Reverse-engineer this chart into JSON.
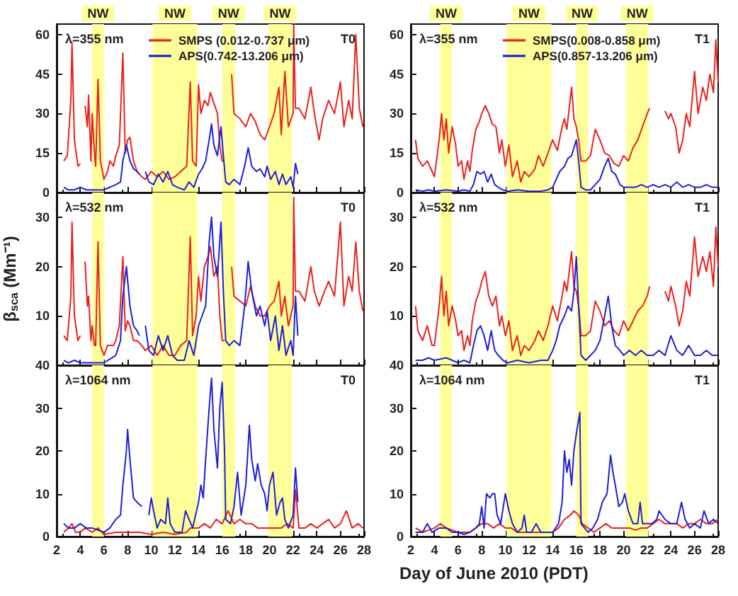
{
  "chart_data": [
    {
      "type": "line",
      "xlim": [
        2,
        28
      ],
      "xticks": [
        2,
        4,
        6,
        8,
        10,
        12,
        14,
        16,
        18,
        20,
        22,
        24,
        26,
        28
      ],
      "ylim": [
        0,
        64
      ],
      "yticks": [
        0,
        15,
        30,
        45,
        60
      ],
      "tick_labels": "y",
      "marker": "none",
      "legend": "top",
      "annotations": [
        "λ=355 nm",
        "T0"
      ],
      "bands": [
        {
          "axis": "x",
          "from": 5.0,
          "to": 6.0,
          "label": "NW",
          "color": "#ffff99"
        },
        {
          "axis": "x",
          "from": 10.1,
          "to": 13.9,
          "label": "NW",
          "color": "#ffff99"
        },
        {
          "axis": "x",
          "from": 16.0,
          "to": 17.1,
          "label": "NW",
          "color": "#ffff99"
        },
        {
          "axis": "x",
          "from": 19.9,
          "to": 21.9,
          "label": "NW",
          "color": "#ffff99"
        }
      ],
      "series": [
        {
          "name": "SMPS (0.012-0.737 μm)",
          "color": "#e8231e",
          "x": [
            2.6,
            2.9,
            3.2,
            3.3,
            3.5,
            3.8,
            4.0,
            4.2,
            4.4,
            4.6,
            4.7,
            4.9,
            5.0,
            5.2,
            5.3,
            5.5,
            5.7,
            6.0,
            6.3,
            6.5,
            6.8,
            7.0,
            7.3,
            7.6,
            7.8,
            8.0,
            8.2,
            8.5,
            8.8,
            9.2,
            9.5,
            10.0,
            10.5,
            11.0,
            11.5,
            12.0,
            12.5,
            13.0,
            13.3,
            13.5,
            13.8,
            14.0,
            14.2,
            14.5,
            14.8,
            15.0,
            15.3,
            15.6,
            15.8,
            16.0,
            16.2,
            16.5,
            16.8,
            17.0,
            17.5,
            18.0,
            18.4,
            18.8,
            19.2,
            19.6,
            20.0,
            20.4,
            20.8,
            21.0,
            21.3,
            21.6,
            22.0,
            22.05,
            22.2,
            22.5,
            23.0,
            23.5,
            23.8,
            24.2,
            24.5,
            25.0,
            25.5,
            26.0,
            26.3,
            26.7,
            27.0,
            27.3,
            27.6,
            27.9
          ],
          "values": [
            12,
            14,
            35,
            57,
            20,
            10,
            11,
            null,
            33,
            25,
            37,
            12,
            30,
            15,
            10,
            43,
            12,
            5,
            8,
            12,
            10,
            14,
            18,
            53,
            15,
            20,
            21,
            12,
            8,
            6,
            5,
            8,
            6,
            8,
            5,
            6,
            8,
            10,
            42,
            12,
            10,
            41,
            30,
            35,
            33,
            38,
            34,
            30,
            18,
            12,
            12,
            null,
            45,
            30,
            28,
            25,
            30,
            27,
            22,
            20,
            25,
            30,
            40,
            22,
            46,
            25,
            30,
            64,
            32,
            32,
            28,
            40,
            30,
            20,
            28,
            35,
            30,
            42,
            25,
            35,
            28,
            60,
            32,
            25
          ]
        },
        {
          "name": "APS(0.742-13.206 μm)",
          "color": "#1f1fd6",
          "x": [
            2.6,
            3.0,
            3.5,
            4.0,
            4.5,
            5.0,
            6.0,
            7.0,
            7.4,
            7.6,
            7.9,
            8.2,
            8.5,
            8.8,
            9.0,
            9.2,
            9.5,
            9.8,
            10.2,
            10.6,
            11.0,
            11.4,
            11.8,
            12.2,
            12.8,
            13.2,
            13.6,
            14.0,
            14.3,
            14.6,
            14.9,
            15.1,
            15.3,
            15.6,
            15.9,
            16.1,
            16.3,
            16.6,
            17.0,
            17.5,
            17.9,
            18.2,
            18.5,
            18.9,
            19.2,
            19.6,
            19.8,
            20.1,
            20.5,
            20.8,
            21.1,
            21.4,
            21.8,
            22.0,
            22.2,
            22.4
          ],
          "values": [
            2,
            1,
            1,
            2,
            1,
            1,
            1,
            3,
            4,
            12,
            18,
            12,
            9,
            8,
            7,
            null,
            8,
            4,
            3,
            7,
            4,
            8,
            3,
            2,
            1,
            4,
            2,
            7,
            9,
            12,
            20,
            26,
            18,
            14,
            25,
            14,
            4,
            3,
            5,
            3,
            10,
            17,
            10,
            8,
            9,
            6,
            10,
            5,
            8,
            3,
            7,
            3,
            6,
            2,
            11,
            7
          ]
        }
      ]
    },
    {
      "type": "line",
      "xlim": [
        2,
        28
      ],
      "xticks": [
        2,
        4,
        6,
        8,
        10,
        12,
        14,
        16,
        18,
        20,
        22,
        24,
        26,
        28
      ],
      "ylim": [
        0,
        64
      ],
      "yticks": [
        0,
        15,
        30,
        45,
        60
      ],
      "tick_labels": "y",
      "marker": "none",
      "legend": "top",
      "annotations": [
        "λ=355 nm",
        "T1"
      ],
      "bands": [
        {
          "axis": "x",
          "from": 4.5,
          "to": 5.5,
          "label": "NW",
          "color": "#ffff99"
        },
        {
          "axis": "x",
          "from": 10.1,
          "to": 13.9,
          "label": "NW",
          "color": "#ffff99"
        },
        {
          "axis": "x",
          "from": 16.0,
          "to": 17.0,
          "label": "NW",
          "color": "#ffff99"
        },
        {
          "axis": "x",
          "from": 20.2,
          "to": 22.1,
          "label": "NW",
          "color": "#ffff99"
        }
      ],
      "series": [
        {
          "name": "SMPS(0.008-0.858 μm)",
          "color": "#e8231e",
          "x": [
            2.4,
            2.6,
            3.0,
            3.4,
            3.8,
            4.0,
            4.4,
            4.6,
            4.8,
            5.0,
            5.2,
            5.5,
            5.8,
            6.0,
            6.3,
            6.5,
            6.8,
            7.0,
            7.2,
            7.5,
            7.8,
            8.0,
            8.3,
            8.6,
            8.9,
            9.2,
            9.5,
            9.7,
            10.0,
            10.3,
            10.6,
            11.0,
            11.3,
            11.6,
            12.0,
            12.5,
            12.8,
            13.2,
            13.6,
            14.0,
            14.4,
            14.8,
            15.0,
            15.2,
            15.6,
            15.8,
            16.0,
            16.2,
            16.4,
            16.8,
            17.2,
            17.6,
            18.0,
            18.4,
            18.8,
            19.2,
            19.6,
            20.0,
            20.4,
            20.8,
            21.2,
            21.6,
            22.0,
            22.2,
            22.8,
            23.5,
            23.8,
            24.0,
            24.4,
            24.7,
            25.0,
            25.3,
            25.6,
            26.0,
            26.3,
            26.7,
            27.0,
            27.3,
            27.6,
            27.8,
            28.0
          ],
          "values": [
            20,
            13,
            10,
            12,
            8,
            6,
            20,
            30,
            20,
            28,
            15,
            25,
            18,
            10,
            12,
            5,
            12,
            8,
            16,
            24,
            27,
            30,
            33,
            30,
            26,
            25,
            15,
            20,
            10,
            18,
            6,
            12,
            4,
            8,
            6,
            9,
            14,
            10,
            15,
            20,
            16,
            25,
            28,
            24,
            40,
            28,
            25,
            20,
            12,
            12,
            14,
            24,
            20,
            15,
            14,
            11,
            10,
            14,
            12,
            17,
            20,
            25,
            30,
            32,
            null,
            31,
            28,
            30,
            25,
            15,
            20,
            30,
            25,
            46,
            30,
            40,
            35,
            45,
            38,
            58,
            42
          ]
        },
        {
          "name": "APS(0.857-13.206 μm)",
          "color": "#1f1fd6",
          "x": [
            2.4,
            3.0,
            3.5,
            4.0,
            5.0,
            6.0,
            6.5,
            7.0,
            7.3,
            7.6,
            7.9,
            8.2,
            8.5,
            8.8,
            9.1,
            9.4,
            9.8,
            10.2,
            11.0,
            12.0,
            13.0,
            13.6,
            14.0,
            14.3,
            14.6,
            15.0,
            15.3,
            15.6,
            15.8,
            16.0,
            16.2,
            16.4,
            16.8,
            17.2,
            17.6,
            18.0,
            18.4,
            18.7,
            19.0,
            19.3,
            19.7,
            20.0,
            20.5,
            21.0,
            21.5,
            22.0,
            22.5,
            23.0,
            23.5,
            24.0,
            24.5,
            25.0,
            25.5,
            26.0,
            26.5,
            27.0,
            27.5,
            28.0
          ],
          "values": [
            1,
            0.5,
            1,
            0.5,
            1,
            0.5,
            1,
            0.5,
            3,
            8,
            7,
            8,
            4,
            7,
            3,
            2,
            1,
            0.5,
            1,
            0.5,
            0.5,
            1,
            2,
            5,
            8,
            10,
            13,
            14,
            17,
            20,
            12,
            2,
            1,
            1,
            3,
            5,
            10,
            13,
            8,
            7,
            3,
            2,
            2,
            2,
            3,
            2,
            3,
            2,
            3,
            2,
            4,
            2,
            3,
            2,
            2,
            3,
            2,
            2
          ]
        }
      ]
    },
    {
      "type": "line",
      "xlim": [
        2,
        28
      ],
      "xticks": [
        2,
        4,
        6,
        8,
        10,
        12,
        14,
        16,
        18,
        20,
        22,
        24,
        26,
        28
      ],
      "ylim": [
        0,
        35
      ],
      "yticks": [
        {
          "value": 0,
          "label": null
        },
        10,
        20,
        30
      ],
      "tick_labels": "y",
      "marker": "none",
      "ylabel": "β$_{sca}$ (Mm⁻¹)",
      "annotations": [
        "λ=532 nm",
        "T0"
      ],
      "bands": [
        {
          "axis": "x",
          "from": 5.0,
          "to": 6.0,
          "color": "#ffff99"
        },
        {
          "axis": "x",
          "from": 10.1,
          "to": 13.9,
          "color": "#ffff99"
        },
        {
          "axis": "x",
          "from": 16.0,
          "to": 17.1,
          "color": "#ffff99"
        },
        {
          "axis": "x",
          "from": 19.9,
          "to": 21.9,
          "color": "#ffff99"
        }
      ],
      "series": [
        {
          "color": "#e8231e",
          "x": [
            2.6,
            2.9,
            3.2,
            3.3,
            3.5,
            3.8,
            4.0,
            4.2,
            4.4,
            4.6,
            4.7,
            4.9,
            5.0,
            5.2,
            5.3,
            5.5,
            5.7,
            6.0,
            6.3,
            6.5,
            6.8,
            7.0,
            7.3,
            7.6,
            7.8,
            8.0,
            8.2,
            8.5,
            8.8,
            9.2,
            9.5,
            10.0,
            10.5,
            11.0,
            11.5,
            12.0,
            12.5,
            13.0,
            13.3,
            13.5,
            13.8,
            14.0,
            14.2,
            14.5,
            14.8,
            15.0,
            15.3,
            15.6,
            15.8,
            16.0,
            16.2,
            16.5,
            16.8,
            17.0,
            17.5,
            18.0,
            18.4,
            18.8,
            19.2,
            19.6,
            20.0,
            20.4,
            20.8,
            21.0,
            21.3,
            21.6,
            22.0,
            22.05,
            22.2,
            22.5,
            23.0,
            23.5,
            23.8,
            24.2,
            24.5,
            25.0,
            25.5,
            26.0,
            26.3,
            26.7,
            27.0,
            27.3,
            27.6,
            27.9
          ],
          "values": [
            6,
            5,
            14,
            29,
            10,
            5,
            6,
            null,
            21,
            12,
            14,
            5,
            8,
            4,
            4,
            25,
            4,
            2,
            4,
            4,
            4,
            5,
            8,
            22,
            7,
            9,
            8,
            5,
            5,
            4,
            3,
            4,
            2,
            4,
            2,
            2,
            4,
            5,
            26,
            6,
            10,
            18,
            13,
            20,
            22,
            24,
            18,
            20,
            10,
            5,
            5,
            null,
            20,
            14,
            13,
            12,
            16,
            12,
            10,
            10,
            12,
            13,
            17,
            10,
            14,
            8,
            12,
            34,
            15,
            15,
            13,
            20,
            15,
            12,
            14,
            17,
            14,
            29,
            12,
            18,
            15,
            25,
            15,
            11
          ]
        },
        {
          "color": "#1f1fd6",
          "x": [
            2.6,
            3.0,
            3.5,
            4.0,
            4.5,
            5.0,
            6.0,
            7.0,
            7.4,
            7.6,
            7.9,
            8.2,
            8.5,
            8.8,
            9.0,
            9.2,
            9.5,
            9.8,
            10.2,
            10.6,
            11.0,
            11.4,
            11.8,
            12.2,
            12.8,
            13.2,
            13.6,
            14.0,
            14.3,
            14.6,
            14.9,
            15.1,
            15.3,
            15.6,
            15.9,
            16.1,
            16.3,
            16.6,
            17.0,
            17.5,
            17.9,
            18.2,
            18.5,
            18.9,
            19.2,
            19.6,
            19.8,
            20.1,
            20.5,
            20.8,
            21.1,
            21.4,
            21.8,
            22.0,
            22.2,
            22.4
          ],
          "values": [
            1,
            0.5,
            1,
            0.5,
            0.5,
            0.5,
            0.5,
            2,
            5,
            14,
            20,
            12,
            8,
            7,
            6,
            null,
            8,
            3,
            2,
            6,
            3,
            6,
            2,
            1,
            1,
            5,
            2,
            8,
            10,
            12,
            25,
            30,
            22,
            18,
            29,
            15,
            5,
            4,
            5,
            4,
            12,
            21,
            15,
            10,
            12,
            8,
            11,
            5,
            10,
            3,
            8,
            2,
            5,
            2,
            14,
            6
          ]
        }
      ]
    },
    {
      "type": "line",
      "xlim": [
        2,
        28
      ],
      "xticks": [
        2,
        4,
        6,
        8,
        10,
        12,
        14,
        16,
        18,
        20,
        22,
        24,
        26,
        28
      ],
      "ylim": [
        0,
        35
      ],
      "yticks": [
        {
          "value": 0,
          "label": null
        },
        10,
        20,
        30
      ],
      "tick_labels": "y",
      "marker": "none",
      "annotations": [
        "λ=532 nm",
        "T1"
      ],
      "bands": [
        {
          "axis": "x",
          "from": 4.5,
          "to": 5.5,
          "color": "#ffff99"
        },
        {
          "axis": "x",
          "from": 10.1,
          "to": 13.9,
          "color": "#ffff99"
        },
        {
          "axis": "x",
          "from": 16.0,
          "to": 17.0,
          "color": "#ffff99"
        },
        {
          "axis": "x",
          "from": 20.2,
          "to": 22.1,
          "color": "#ffff99"
        }
      ],
      "series": [
        {
          "color": "#e8231e",
          "x": [
            2.4,
            2.6,
            3.0,
            3.4,
            3.8,
            4.0,
            4.4,
            4.6,
            4.8,
            5.0,
            5.2,
            5.5,
            5.8,
            6.0,
            6.3,
            6.5,
            6.8,
            7.0,
            7.2,
            7.5,
            7.8,
            8.0,
            8.3,
            8.6,
            8.9,
            9.2,
            9.5,
            9.7,
            10.0,
            10.3,
            10.6,
            11.0,
            11.3,
            11.6,
            12.0,
            12.5,
            12.8,
            13.2,
            13.6,
            14.0,
            14.4,
            14.8,
            15.0,
            15.2,
            15.6,
            15.8,
            16.0,
            16.2,
            16.4,
            16.8,
            17.2,
            17.6,
            18.0,
            18.4,
            18.8,
            19.2,
            19.6,
            20.0,
            20.4,
            20.8,
            21.2,
            21.6,
            22.0,
            22.2,
            22.8,
            23.5,
            23.8,
            24.0,
            24.4,
            24.7,
            25.0,
            25.3,
            25.6,
            26.0,
            26.3,
            26.7,
            27.0,
            27.3,
            27.6,
            27.8,
            28.0
          ],
          "values": [
            12,
            7,
            5,
            8,
            4,
            4,
            12,
            18,
            10,
            15,
            8,
            12,
            9,
            6,
            7,
            3,
            6,
            4,
            9,
            13,
            15,
            17,
            19,
            14,
            12,
            14,
            8,
            10,
            6,
            9,
            3,
            6,
            2,
            4,
            3,
            5,
            7,
            5,
            8,
            12,
            9,
            14,
            17,
            15,
            23,
            16,
            15,
            12,
            6,
            6,
            7,
            13,
            11,
            8,
            9,
            7,
            6,
            9,
            7,
            9,
            11,
            12,
            14,
            16,
            null,
            15,
            13,
            16,
            12,
            8,
            11,
            17,
            14,
            26,
            18,
            22,
            19,
            23,
            16,
            28,
            20
          ]
        },
        {
          "color": "#1f1fd6",
          "x": [
            2.4,
            3.0,
            3.5,
            4.0,
            5.0,
            6.0,
            6.5,
            7.0,
            7.3,
            7.6,
            7.9,
            8.2,
            8.5,
            8.8,
            9.1,
            9.4,
            9.8,
            10.2,
            11.0,
            12.0,
            13.0,
            13.6,
            14.0,
            14.3,
            14.6,
            15.0,
            15.3,
            15.6,
            15.8,
            16.0,
            16.2,
            16.4,
            16.8,
            17.2,
            17.6,
            18.0,
            18.4,
            18.7,
            19.0,
            19.3,
            19.7,
            20.0,
            20.5,
            21.0,
            21.5,
            22.0,
            22.5,
            23.0,
            23.5,
            24.0,
            24.5,
            25.0,
            25.5,
            26.0,
            26.5,
            27.0,
            27.5,
            28.0
          ],
          "values": [
            1,
            1,
            1.5,
            1,
            1.5,
            0.5,
            1,
            0.5,
            4,
            7,
            8,
            6,
            3,
            7,
            3,
            2,
            1,
            0.5,
            1,
            0.5,
            1,
            1,
            3,
            5,
            8,
            10,
            12,
            11,
            15,
            22,
            12,
            2,
            1,
            2,
            3,
            5,
            10,
            14,
            8,
            4,
            3,
            2,
            3,
            2,
            3,
            2,
            2,
            3,
            2,
            6,
            3,
            2,
            4,
            2,
            2,
            3,
            2,
            2
          ]
        }
      ]
    },
    {
      "type": "line",
      "xlim": [
        2,
        28
      ],
      "xticks": [
        2,
        4,
        6,
        8,
        10,
        12,
        14,
        16,
        18,
        20,
        22,
        24,
        26,
        28
      ],
      "ylim": [
        0,
        40
      ],
      "yticks": [
        0,
        10,
        20,
        30,
        40
      ],
      "marker": "none",
      "annotations": [
        "λ=1064 nm",
        "T0"
      ],
      "bands": [
        {
          "axis": "x",
          "from": 5.0,
          "to": 6.0,
          "color": "#ffff99"
        },
        {
          "axis": "x",
          "from": 10.1,
          "to": 13.9,
          "color": "#ffff99"
        },
        {
          "axis": "x",
          "from": 16.0,
          "to": 17.1,
          "color": "#ffff99"
        },
        {
          "axis": "x",
          "from": 19.9,
          "to": 21.9,
          "color": "#ffff99"
        }
      ],
      "series": [
        {
          "color": "#e8231e",
          "x": [
            2.6,
            3.0,
            3.3,
            3.6,
            4.0,
            4.4,
            5.0,
            5.5,
            6.0,
            7,
            8,
            9,
            10,
            11,
            12,
            13,
            13.3,
            14,
            14.5,
            15,
            15.5,
            16,
            16.5,
            17,
            17.5,
            18,
            18.5,
            19,
            19.5,
            20,
            20.5,
            21,
            21.5,
            22,
            22.2,
            22.5,
            23,
            23.5,
            24,
            24.5,
            25,
            25.5,
            26,
            26.5,
            27,
            27.5,
            27.9
          ],
          "values": [
            1,
            2,
            3,
            1,
            1,
            2,
            1,
            2,
            0.5,
            1,
            1,
            1,
            0.5,
            1,
            0.5,
            1,
            2,
            2,
            3,
            2,
            4,
            3,
            6,
            3,
            4,
            3,
            3,
            2,
            2,
            2,
            2,
            2,
            3,
            2,
            11,
            2,
            2,
            3,
            2,
            3,
            4,
            2,
            3,
            6,
            2,
            3,
            2
          ]
        },
        {
          "color": "#1f1fd6",
          "x": [
            2.6,
            3.0,
            3.5,
            4.0,
            4.5,
            5.0,
            6.0,
            6.5,
            7.0,
            7.4,
            7.6,
            7.9,
            8.0,
            8.2,
            8.5,
            8.8,
            9.2,
            9.5,
            9.8,
            10.0,
            10.2,
            10.5,
            10.8,
            11.2,
            11.4,
            11.6,
            12.0,
            12.6,
            12.9,
            13.2,
            13.5,
            14.0,
            14.2,
            14.4,
            14.6,
            14.9,
            15.1,
            15.3,
            15.6,
            15.8,
            16.0,
            16.2,
            16.3,
            16.7,
            17.0,
            17.3,
            17.6,
            18.0,
            18.3,
            18.5,
            18.8,
            19.0,
            19.3,
            19.6,
            19.8,
            20.0,
            20.3,
            20.6,
            20.9,
            21.1,
            21.3,
            21.6,
            22.0,
            22.2,
            22.4
          ],
          "values": [
            3,
            2,
            2,
            3,
            2,
            2,
            1,
            2,
            4,
            5,
            12,
            20,
            25,
            18,
            9,
            8,
            7,
            null,
            5,
            9,
            6,
            2,
            4,
            3,
            9,
            3,
            1,
            1,
            6,
            4,
            2,
            8,
            12,
            9,
            18,
            30,
            37,
            25,
            16,
            30,
            36,
            20,
            4,
            3,
            7,
            15,
            5,
            12,
            26,
            18,
            13,
            17,
            12,
            10,
            6,
            12,
            15,
            5,
            8,
            9,
            4,
            2,
            5,
            16,
            8
          ]
        }
      ]
    },
    {
      "type": "line",
      "xlim": [
        2,
        28
      ],
      "xticks": [
        2,
        4,
        6,
        8,
        10,
        12,
        14,
        16,
        18,
        20,
        22,
        24,
        26,
        28
      ],
      "ylim": [
        0,
        40
      ],
      "yticks": [
        0,
        10,
        20,
        30,
        40
      ],
      "marker": "none",
      "xlabel": "Day of June 2010 (PDT)",
      "annotations": [
        "λ=1064 nm",
        "T1"
      ],
      "bands": [
        {
          "axis": "x",
          "from": 4.5,
          "to": 5.5,
          "color": "#ffff99"
        },
        {
          "axis": "x",
          "from": 10.1,
          "to": 13.9,
          "color": "#ffff99"
        },
        {
          "axis": "x",
          "from": 16.0,
          "to": 17.0,
          "color": "#ffff99"
        },
        {
          "axis": "x",
          "from": 20.2,
          "to": 22.1,
          "color": "#ffff99"
        }
      ],
      "series": [
        {
          "color": "#e8231e",
          "x": [
            2.4,
            3,
            4,
            4.5,
            5,
            6,
            7,
            7.5,
            8,
            8.5,
            9,
            9.5,
            10,
            10.5,
            11,
            12,
            13,
            14,
            14.5,
            15,
            15.5,
            15.8,
            16.2,
            16.5,
            17,
            17.5,
            18,
            18.5,
            19,
            19.5,
            20,
            20.5,
            21,
            21.5,
            22,
            22.5,
            23,
            23.5,
            24,
            24.5,
            25,
            25.5,
            26,
            26.5,
            27,
            27.5,
            28
          ],
          "values": [
            2,
            1,
            2,
            3,
            2,
            1,
            1,
            2,
            3,
            3,
            2,
            3,
            2,
            2,
            1,
            1,
            1,
            1,
            2,
            4,
            5,
            6,
            5,
            3,
            2,
            1,
            2,
            3,
            2,
            2,
            2,
            2,
            1.5,
            2,
            2,
            3,
            4,
            3,
            3,
            3,
            2,
            3,
            3,
            4,
            3,
            3,
            4
          ]
        },
        {
          "color": "#1f1fd6",
          "x": [
            2.4,
            3.0,
            3.4,
            3.8,
            4.4,
            5.0,
            5.5,
            6.0,
            6.5,
            7.0,
            7.5,
            7.8,
            8.0,
            8.2,
            8.4,
            8.7,
            8.9,
            9.1,
            9.3,
            9.6,
            10.0,
            10.3,
            10.6,
            11.0,
            11.4,
            11.6,
            11.8,
            12.2,
            12.6,
            13.0,
            13.5,
            14.0,
            14.5,
            14.8,
            15.0,
            15.2,
            15.4,
            15.6,
            15.8,
            16.0,
            16.3,
            16.4,
            16.7,
            17.0,
            17.4,
            17.8,
            18.2,
            18.6,
            18.9,
            19.1,
            19.3,
            19.6,
            19.9,
            20.1,
            20.4,
            20.8,
            21.2,
            21.4,
            21.6,
            22.0,
            22.4,
            22.8,
            23.0,
            23.5,
            24.0,
            24.5,
            24.9,
            25.2,
            25.6,
            26.0,
            26.5,
            26.8,
            27.2,
            27.6,
            28.0
          ],
          "values": [
            1,
            1,
            3,
            1,
            2,
            2,
            1,
            1,
            0.5,
            1,
            2,
            3,
            7,
            2,
            10,
            9,
            10,
            10,
            5,
            3,
            10,
            6,
            3,
            1,
            2,
            5,
            1,
            1,
            3,
            1,
            1,
            1,
            3,
            8,
            20,
            15,
            18,
            12,
            20,
            24,
            29,
            3,
            2,
            1,
            2,
            4,
            8,
            10,
            19,
            15,
            12,
            7,
            8,
            10,
            6,
            3,
            3,
            8,
            3,
            3,
            3,
            4,
            6,
            4,
            3,
            3,
            8,
            4,
            2,
            3,
            2,
            6,
            3,
            4,
            3
          ]
        }
      ]
    }
  ]
}
